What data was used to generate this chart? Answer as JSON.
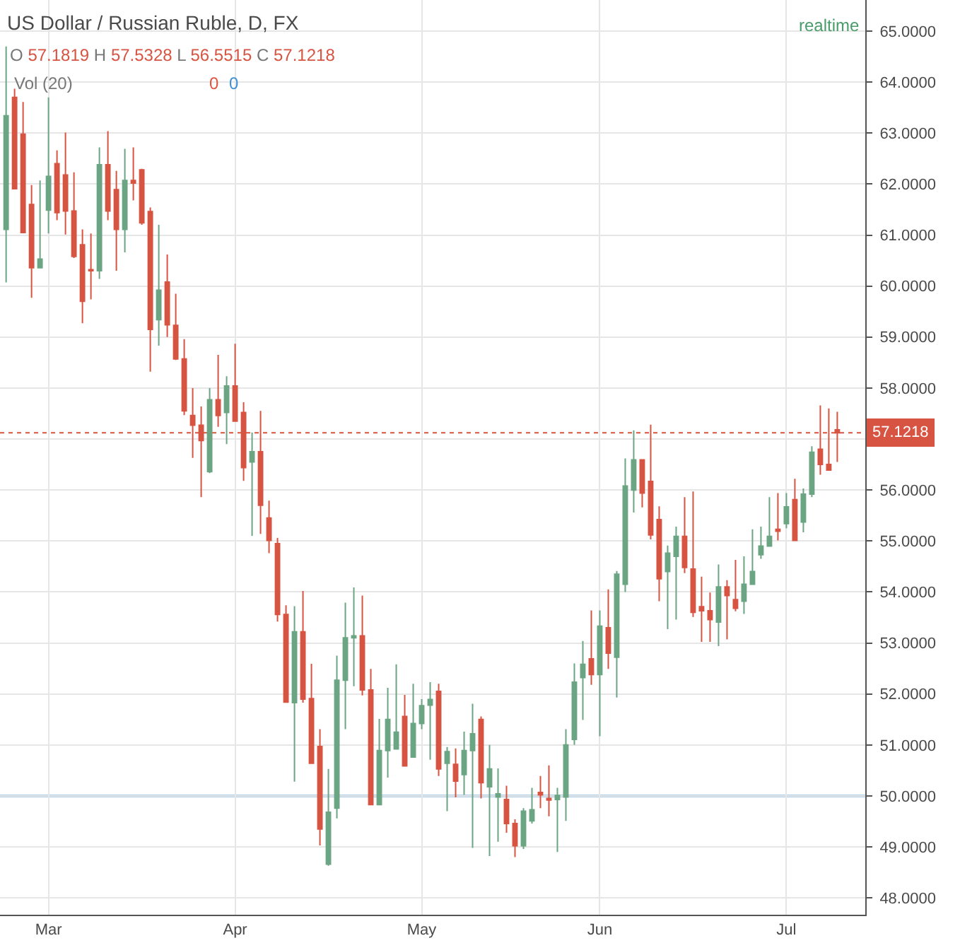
{
  "chart_data": {
    "type": "candlestick",
    "title": "US Dollar / Russian Ruble, D, FX",
    "categories": [
      null,
      null,
      null,
      null,
      null,
      "Mar",
      null,
      null,
      null,
      null,
      null,
      null,
      null,
      null,
      null,
      null,
      null,
      null,
      null,
      null,
      null,
      null,
      null,
      null,
      null,
      null,
      null,
      "Apr",
      null,
      null,
      null,
      null,
      null,
      null,
      null,
      null,
      null,
      null,
      null,
      null,
      null,
      null,
      null,
      null,
      null,
      null,
      null,
      null,
      null,
      "May",
      null,
      null,
      null,
      null,
      null,
      null,
      null,
      null,
      null,
      null,
      null,
      null,
      null,
      null,
      null,
      null,
      null,
      null,
      null,
      null,
      "Jun",
      null,
      null,
      null,
      null,
      null,
      null,
      null,
      null,
      null,
      null,
      null,
      null,
      null,
      null,
      null,
      null,
      null,
      null,
      null,
      null,
      null,
      "Jul",
      null,
      null,
      null,
      null,
      null,
      null
    ],
    "ohlc": [
      [
        61.11,
        64.7,
        60.07,
        63.34
      ],
      [
        63.7,
        63.87,
        61.91,
        61.91
      ],
      [
        62.98,
        63.61,
        61.05,
        61.05
      ],
      [
        61.6,
        61.98,
        59.77,
        60.36
      ],
      [
        60.36,
        62.07,
        60.36,
        60.53
      ],
      [
        61.49,
        63.7,
        61.03,
        62.15
      ],
      [
        62.4,
        62.66,
        61.29,
        61.44
      ],
      [
        62.18,
        63.01,
        61.01,
        61.47
      ],
      [
        61.47,
        62.23,
        60.55,
        60.58
      ],
      [
        60.81,
        61.11,
        59.27,
        59.7
      ],
      [
        60.32,
        61.03,
        59.74,
        60.3
      ],
      [
        60.3,
        62.72,
        60.14,
        62.38
      ],
      [
        62.38,
        63.04,
        61.29,
        61.47
      ],
      [
        61.89,
        62.26,
        60.3,
        61.11
      ],
      [
        61.11,
        62.69,
        60.66,
        62.07
      ],
      [
        62.07,
        62.72,
        61.68,
        62.02
      ],
      [
        62.28,
        62.3,
        61.2,
        61.24
      ],
      [
        61.46,
        61.54,
        58.32,
        59.15
      ],
      [
        59.34,
        61.2,
        58.83,
        59.92
      ],
      [
        60.08,
        60.62,
        59.0,
        59.24
      ],
      [
        59.23,
        59.85,
        58.55,
        58.57
      ],
      [
        58.57,
        58.96,
        57.47,
        57.55
      ],
      [
        57.46,
        58.0,
        56.63,
        57.27
      ],
      [
        57.27,
        57.64,
        55.86,
        56.97
      ],
      [
        56.36,
        58.0,
        56.33,
        57.77
      ],
      [
        57.77,
        58.65,
        57.24,
        57.46
      ],
      [
        57.52,
        58.23,
        56.9,
        58.04
      ],
      [
        58.04,
        58.87,
        57.35,
        57.35
      ],
      [
        57.52,
        57.72,
        56.18,
        56.44
      ],
      [
        56.55,
        57.13,
        55.1,
        56.75
      ],
      [
        56.75,
        57.55,
        55.14,
        55.7
      ],
      [
        55.45,
        55.79,
        54.76,
        55.01
      ],
      [
        54.95,
        55.06,
        53.42,
        53.56
      ],
      [
        53.56,
        53.74,
        51.84,
        51.84
      ],
      [
        51.83,
        53.72,
        50.28,
        53.22
      ],
      [
        53.22,
        54.02,
        51.83,
        51.9
      ],
      [
        51.91,
        52.59,
        50.64,
        50.64
      ],
      [
        50.97,
        51.31,
        49.03,
        49.35
      ],
      [
        48.66,
        50.53,
        48.63,
        49.68
      ],
      [
        49.76,
        52.75,
        49.56,
        52.27
      ],
      [
        52.27,
        53.79,
        51.31,
        53.1
      ],
      [
        53.1,
        54.09,
        52.15,
        53.14
      ],
      [
        53.14,
        53.93,
        51.97,
        52.08
      ],
      [
        52.08,
        52.49,
        49.83,
        49.83
      ],
      [
        49.83,
        51.51,
        49.83,
        50.89
      ],
      [
        50.89,
        52.12,
        50.36,
        51.5
      ],
      [
        50.92,
        52.58,
        50.92,
        51.25
      ],
      [
        51.56,
        51.98,
        50.59,
        50.59
      ],
      [
        50.76,
        52.2,
        50.76,
        51.42
      ],
      [
        51.42,
        51.9,
        51.31,
        51.77
      ],
      [
        51.78,
        52.23,
        50.71,
        51.89
      ],
      [
        52.05,
        52.2,
        50.39,
        50.53
      ],
      [
        50.64,
        50.96,
        49.7,
        50.87
      ],
      [
        50.62,
        50.93,
        49.97,
        50.29
      ],
      [
        50.42,
        51.26,
        50.02,
        50.89
      ],
      [
        50.89,
        51.81,
        48.98,
        51.22
      ],
      [
        51.5,
        51.56,
        49.95,
        50.26
      ],
      [
        50.18,
        51.0,
        48.82,
        50.53
      ],
      [
        49.98,
        50.54,
        49.1,
        50.04
      ],
      [
        49.93,
        50.2,
        49.28,
        49.46
      ],
      [
        49.46,
        49.54,
        48.8,
        49.02
      ],
      [
        49.02,
        49.76,
        48.96,
        49.7
      ],
      [
        49.51,
        50.16,
        49.46,
        49.73
      ],
      [
        50.07,
        50.39,
        49.76,
        50.02
      ],
      [
        49.95,
        50.6,
        49.6,
        49.92
      ],
      [
        49.93,
        50.16,
        48.9,
        50.01
      ],
      [
        49.98,
        51.31,
        49.51,
        51.0
      ],
      [
        51.11,
        52.6,
        51.0,
        52.23
      ],
      [
        52.32,
        53.04,
        51.49,
        52.58
      ],
      [
        52.69,
        53.64,
        52.18,
        52.38
      ],
      [
        52.38,
        53.64,
        51.17,
        53.33
      ],
      [
        53.3,
        54.05,
        52.49,
        52.8
      ],
      [
        52.72,
        54.41,
        51.93,
        54.35
      ],
      [
        54.15,
        56.62,
        54.0,
        56.08
      ],
      [
        56.0,
        57.17,
        55.56,
        56.59
      ],
      [
        56.59,
        56.6,
        55.66,
        55.94
      ],
      [
        56.17,
        57.28,
        55.03,
        55.12
      ],
      [
        55.42,
        55.68,
        53.82,
        54.26
      ],
      [
        54.4,
        54.91,
        53.27,
        54.76
      ],
      [
        54.7,
        55.28,
        53.46,
        55.09
      ],
      [
        55.09,
        55.86,
        54.37,
        54.48
      ],
      [
        54.45,
        55.97,
        53.51,
        53.6
      ],
      [
        53.71,
        54.3,
        53.02,
        53.63
      ],
      [
        53.63,
        53.99,
        53.02,
        53.46
      ],
      [
        53.41,
        54.54,
        52.94,
        54.1
      ],
      [
        54.1,
        54.23,
        53.07,
        53.93
      ],
      [
        53.85,
        54.63,
        53.62,
        53.68
      ],
      [
        53.82,
        54.7,
        53.57,
        54.15
      ],
      [
        54.15,
        55.23,
        54.15,
        54.4
      ],
      [
        54.73,
        55.28,
        54.65,
        54.9
      ],
      [
        54.9,
        55.86,
        54.9,
        55.09
      ],
      [
        55.23,
        55.94,
        55.01,
        55.19
      ],
      [
        55.34,
        55.94,
        55.25,
        55.67
      ],
      [
        55.81,
        56.22,
        55.01,
        55.01
      ],
      [
        55.37,
        56.03,
        55.17,
        55.92
      ],
      [
        55.92,
        56.86,
        55.86,
        56.74
      ],
      [
        56.8,
        57.66,
        56.3,
        56.5
      ],
      [
        56.5,
        57.6,
        56.39,
        56.39
      ],
      [
        57.1819,
        57.5328,
        56.5515,
        57.1218
      ]
    ],
    "colors": [
      "#6ba583",
      "#d75442",
      "#d75442",
      "#d75442",
      "#6ba583",
      "#6ba583",
      "#d75442",
      "#d75442",
      "#d75442",
      "#d75442",
      "#d75442",
      "#6ba583",
      "#d75442",
      "#d75442",
      "#6ba583",
      "#d75442",
      "#d75442",
      "#d75442",
      "#6ba583",
      "#d75442",
      "#d75442",
      "#d75442",
      "#d75442",
      "#d75442",
      "#6ba583",
      "#d75442",
      "#6ba583",
      "#d75442",
      "#d75442",
      "#6ba583",
      "#d75442",
      "#d75442",
      "#d75442",
      "#d75442",
      "#6ba583",
      "#d75442",
      "#d75442",
      "#d75442",
      "#6ba583",
      "#6ba583",
      "#6ba583",
      "#6ba583",
      "#d75442",
      "#d75442",
      "#6ba583",
      "#6ba583",
      "#6ba583",
      "#d75442",
      "#6ba583",
      "#6ba583",
      "#6ba583",
      "#d75442",
      "#6ba583",
      "#d75442",
      "#6ba583",
      "#6ba583",
      "#d75442",
      "#6ba583",
      "#6ba583",
      "#d75442",
      "#d75442",
      "#6ba583",
      "#6ba583",
      "#d75442",
      "#d75442",
      "#6ba583",
      "#6ba583",
      "#6ba583",
      "#6ba583",
      "#d75442",
      "#6ba583",
      "#d75442",
      "#6ba583",
      "#6ba583",
      "#6ba583",
      "#d75442",
      "#d75442",
      "#d75442",
      "#6ba583",
      "#6ba583",
      "#d75442",
      "#d75442",
      "#d75442",
      "#d75442",
      "#6ba583",
      "#d75442",
      "#d75442",
      "#6ba583",
      "#6ba583",
      "#6ba583",
      "#6ba583",
      "#d75442",
      "#6ba583",
      "#d75442",
      "#6ba583",
      "#6ba583",
      "#d75442",
      "#d75442",
      "#d75442"
    ],
    "ylim": [
      47.67,
      65.61
    ],
    "yticks": [
      {
        "value": 48,
        "label": "48.0000"
      },
      {
        "value": 49,
        "label": "49.0000"
      },
      {
        "value": 50,
        "label": "50.0000"
      },
      {
        "value": 51,
        "label": "51.0000"
      },
      {
        "value": 52,
        "label": "52.0000"
      },
      {
        "value": 53,
        "label": "53.0000"
      },
      {
        "value": 54,
        "label": "54.0000"
      },
      {
        "value": 55,
        "label": "55.0000"
      },
      {
        "value": 56,
        "label": "56.0000"
      },
      {
        "value": 57,
        "label": null
      },
      {
        "value": 58,
        "label": "58.0000"
      },
      {
        "value": 59,
        "label": "59.0000"
      },
      {
        "value": 60,
        "label": "60.0000"
      },
      {
        "value": 61,
        "label": "61.0000"
      },
      {
        "value": 62,
        "label": "62.0000"
      },
      {
        "value": 63,
        "label": "63.0000"
      },
      {
        "value": 64,
        "label": "64.0000"
      },
      {
        "value": 65,
        "label": "65.0000"
      }
    ],
    "grid": true,
    "ref_lines": [
      {
        "axis": "y",
        "value": 57.1218,
        "label": "57.1218",
        "color": "#d75442",
        "line_style": "dotted"
      },
      {
        "axis": "y",
        "value": 50,
        "color": "#a9cbe6"
      }
    ],
    "annotations": [
      "O 57.1819 H 57.5328 L 56.5515 C 57.1218",
      "Vol (20)",
      "0",
      "0",
      "realtime"
    ]
  }
}
